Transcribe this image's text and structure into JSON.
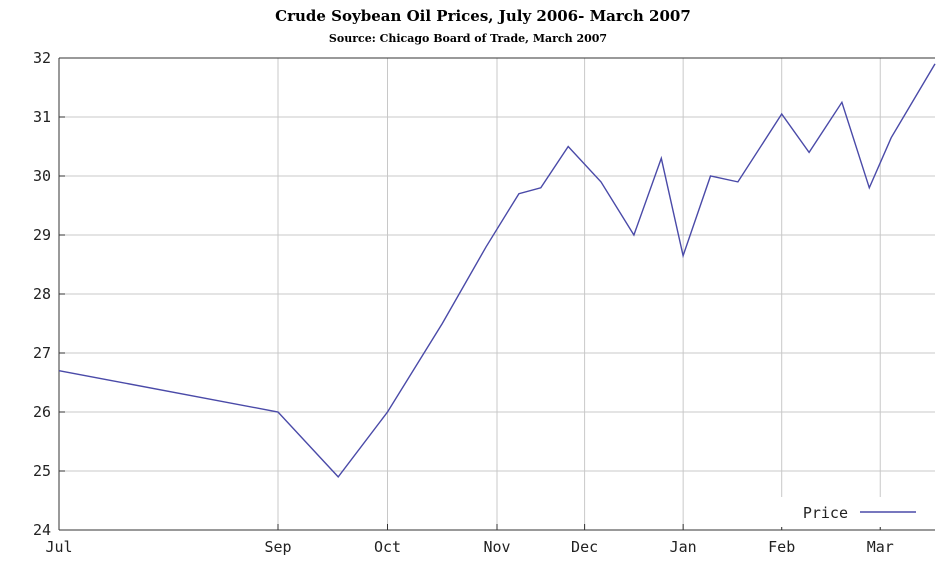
{
  "chart_data": {
    "type": "line",
    "title": "Crude Soybean Oil Prices, July 2006- March 2007",
    "subtitle": "Source: Chicago Board of Trade, March 2007",
    "xlabel": "",
    "ylabel": "",
    "ylim": [
      24,
      32
    ],
    "yticks": [
      "24",
      "25",
      "26",
      "27",
      "28",
      "29",
      "30",
      "31",
      "32"
    ],
    "xticks": [
      {
        "label": "Jul",
        "pos": 0
      },
      {
        "label": "Sep",
        "pos": 2
      },
      {
        "label": "Oct",
        "pos": 3
      },
      {
        "label": "Nov",
        "pos": 4
      },
      {
        "label": "Dec",
        "pos": 4.8
      },
      {
        "label": "Jan",
        "pos": 5.7
      },
      {
        "label": "Feb",
        "pos": 6.6
      },
      {
        "label": "Mar",
        "pos": 7.5
      }
    ],
    "xlim": [
      0,
      8
    ],
    "grid": true,
    "legend_position": "bottom-right",
    "series": [
      {
        "name": "Price",
        "color": "#4a4aa8",
        "x": [
          0,
          2,
          2.55,
          3,
          3.5,
          3.9,
          4.2,
          4.4,
          4.65,
          4.95,
          5.25,
          5.5,
          5.7,
          5.95,
          6.2,
          6.6,
          6.85,
          7.15,
          7.4,
          7.6,
          8
        ],
        "values": [
          26.7,
          26.0,
          24.9,
          26.0,
          27.5,
          28.8,
          29.7,
          29.8,
          30.5,
          29.9,
          29.0,
          30.3,
          28.65,
          30.0,
          29.9,
          31.05,
          30.4,
          31.25,
          29.8,
          30.65,
          31.9
        ]
      }
    ]
  }
}
